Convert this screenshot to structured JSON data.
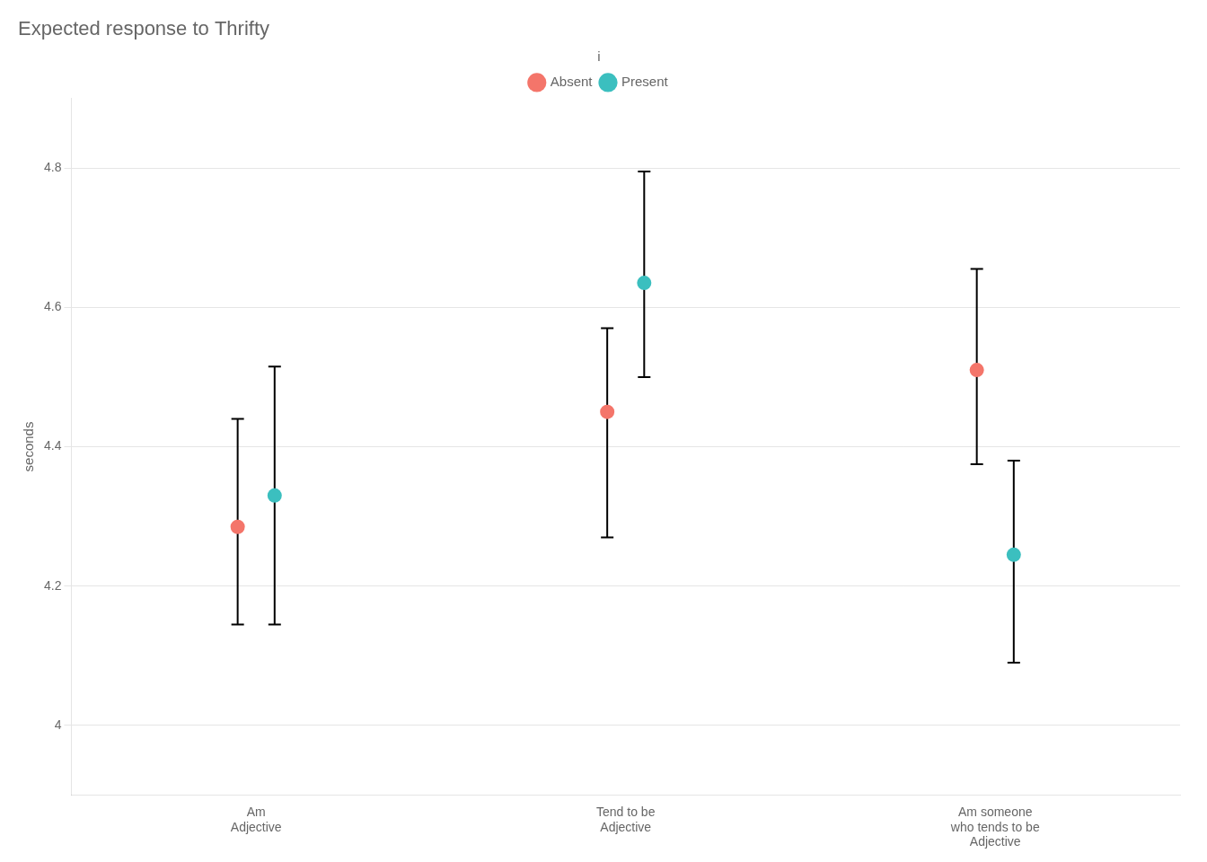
{
  "chart_data": {
    "type": "dot",
    "title": "Expected response to Thrifty",
    "ylabel": "seconds",
    "categories": [
      "Am\nAdjective",
      "Tend to be\nAdjective",
      "Am someone\nwho tends to be\nAdjective"
    ],
    "series": [
      {
        "name": "Absent",
        "color": "#F4756A",
        "values": [
          4.285,
          4.45,
          4.51
        ],
        "lower": [
          4.145,
          4.27,
          4.375
        ],
        "upper": [
          4.44,
          4.57,
          4.655
        ]
      },
      {
        "name": "Present",
        "color": "#3BBFBF",
        "values": [
          4.33,
          4.635,
          4.245
        ],
        "lower": [
          4.145,
          4.5,
          4.09
        ],
        "upper": [
          4.515,
          4.795,
          4.38
        ]
      }
    ],
    "ylim": [
      3.9,
      4.9
    ],
    "yticks": [
      4,
      4.2,
      4.4,
      4.6,
      4.8
    ],
    "grid": true,
    "legend": "top",
    "legend_title": "i"
  }
}
